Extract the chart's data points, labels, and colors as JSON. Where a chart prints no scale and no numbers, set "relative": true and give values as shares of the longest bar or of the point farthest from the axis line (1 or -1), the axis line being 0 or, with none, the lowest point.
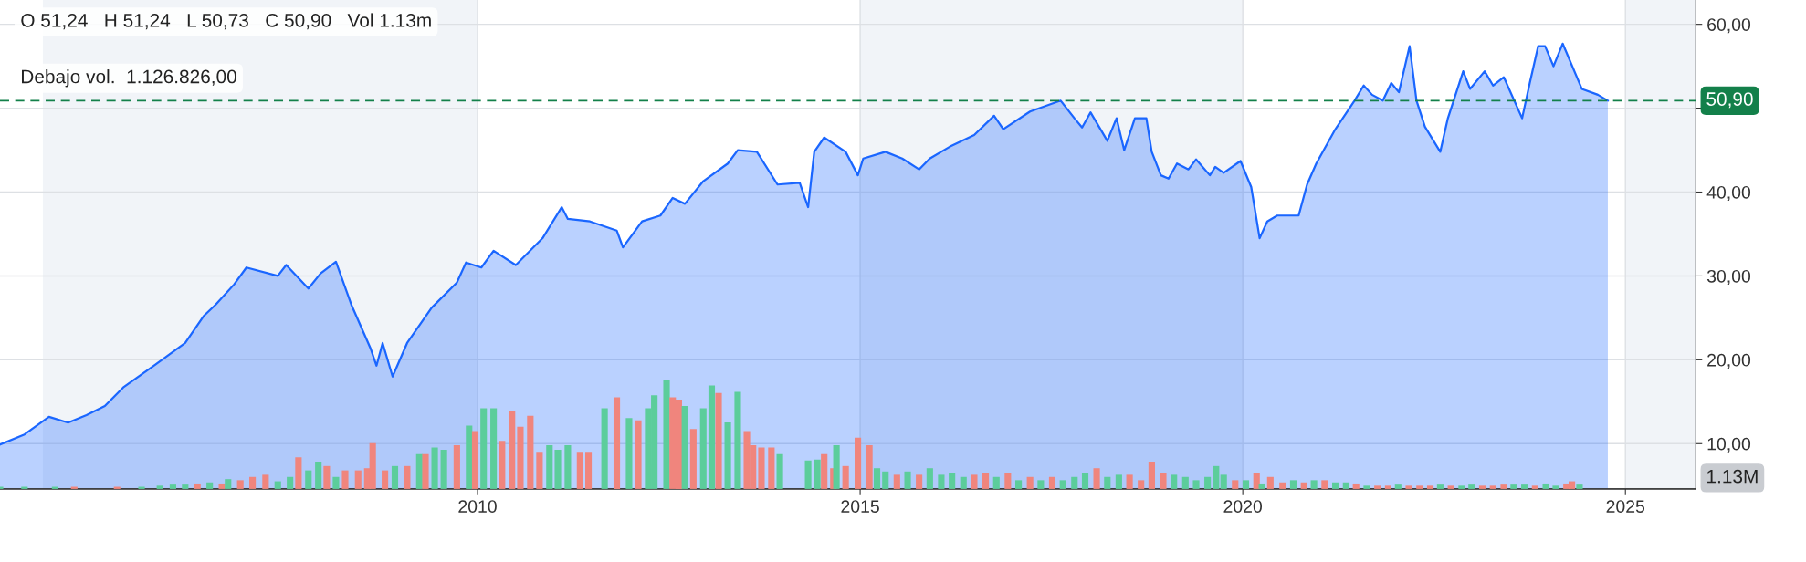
{
  "chart_data": [
    {
      "type": "area",
      "annotations": [
        "O 51,24   H 51,24   L 50,73   C 50,90   Vol 1.13m",
        "Debajo vol.  1.126.826,00"
      ],
      "xlim": [
        2003.76,
        2025.92
      ],
      "xticks": [
        2010,
        2015,
        2020,
        2025
      ],
      "ylim": [
        4.6,
        62.9
      ],
      "yticks": [
        {
          "value": 10,
          "label": "10,00"
        },
        {
          "value": 20,
          "label": "20,00"
        },
        {
          "value": 30,
          "label": "30,00"
        },
        {
          "value": 40,
          "label": "40,00"
        },
        {
          "value": 50,
          "label": null
        },
        {
          "value": 60,
          "label": "60,00"
        }
      ],
      "grid": true,
      "legend": false,
      "ref_lines": [
        {
          "axis": "y",
          "value": 50.9,
          "label": "50,90",
          "color": "#13804a",
          "line_style": "dashed"
        }
      ],
      "bands": [
        {
          "axis": "x",
          "from": 2004.32,
          "to": 2010,
          "color": "#f1f4f8"
        },
        {
          "axis": "x",
          "from": 2015,
          "to": 2020,
          "color": "#f1f4f8"
        },
        {
          "axis": "x",
          "from": 2025,
          "to": 2025.92,
          "color": "#f1f4f8"
        }
      ],
      "series": [
        {
          "color": "#1a66ff",
          "x": [
            2003.76,
            2004.08,
            2004.4,
            2004.65,
            2004.89,
            2005.13,
            2005.37,
            2005.77,
            2006.18,
            2006.42,
            2006.58,
            2006.82,
            2006.98,
            2007.39,
            2007.5,
            2007.79,
            2007.95,
            2008.15,
            2008.35,
            2008.6,
            2008.68,
            2008.76,
            2008.89,
            2009.08,
            2009.4,
            2009.73,
            2009.85,
            2010.05,
            2010.21,
            2010.5,
            2010.85,
            2011.1,
            2011.18,
            2011.47,
            2011.82,
            2011.9,
            2012.15,
            2012.39,
            2012.55,
            2012.71,
            2012.95,
            2013.27,
            2013.4,
            2013.65,
            2013.92,
            2014.21,
            2014.32,
            2014.4,
            2014.53,
            2014.81,
            2014.97,
            2015.04,
            2015.33,
            2015.55,
            2015.77,
            2015.91,
            2016.17,
            2016.49,
            2016.75,
            2016.87,
            2017.22,
            2017.62,
            2017.8,
            2017.9,
            2018.01,
            2018.23,
            2018.35,
            2018.45,
            2018.59,
            2018.74,
            2018.81,
            2018.93,
            2019.03,
            2019.14,
            2019.29,
            2019.39,
            2019.57,
            2019.64,
            2019.75,
            2019.97,
            2020.11,
            2020.22,
            2020.32,
            2020.45,
            2020.73,
            2020.84,
            2020.96,
            2021.21,
            2021.46,
            2021.58,
            2021.69,
            2021.83,
            2021.94,
            2022.04,
            2022.18,
            2022.27,
            2022.38,
            2022.58,
            2022.68,
            2022.88,
            2022.97,
            2023.16,
            2023.27,
            2023.41,
            2023.65,
            2023.75,
            2023.86,
            2023.95,
            2024.06,
            2024.18,
            2024.43,
            2024.64,
            2024.77
          ],
          "values": [
            9.9,
            11.1,
            13.2,
            12.5,
            13.4,
            14.5,
            16.7,
            19.3,
            22.0,
            25.2,
            26.6,
            29.0,
            31.0,
            30.0,
            31.3,
            28.5,
            30.3,
            31.7,
            26.6,
            21.4,
            19.3,
            22.0,
            18.0,
            22.0,
            26.2,
            29.2,
            31.6,
            31.0,
            33.0,
            31.3,
            34.5,
            38.2,
            36.8,
            36.5,
            35.4,
            33.4,
            36.5,
            37.2,
            39.3,
            38.6,
            41.3,
            43.4,
            45.0,
            44.8,
            40.9,
            41.1,
            38.2,
            44.8,
            46.5,
            44.8,
            42.0,
            44.0,
            44.8,
            44.0,
            42.7,
            44.0,
            45.4,
            46.8,
            49.1,
            47.5,
            49.6,
            50.9,
            48.8,
            47.7,
            49.5,
            46.1,
            48.8,
            45.0,
            48.8,
            48.8,
            44.8,
            42.0,
            41.6,
            43.4,
            42.7,
            43.9,
            42.0,
            43.0,
            42.3,
            43.7,
            40.6,
            34.5,
            36.5,
            37.2,
            37.2,
            40.9,
            43.4,
            47.5,
            50.9,
            52.7,
            51.6,
            50.9,
            53.0,
            51.9,
            57.4,
            50.9,
            47.8,
            44.8,
            48.8,
            54.4,
            52.3,
            54.4,
            52.7,
            53.7,
            48.8,
            53.0,
            57.4,
            57.4,
            55.0,
            57.7,
            52.3,
            51.6,
            50.9
          ]
        }
      ]
    },
    {
      "type": "bar",
      "relative": true,
      "tick_labels": false,
      "annotations": [
        "1.13M"
      ],
      "xlim": [
        2003.76,
        2025.92
      ],
      "xticks": [
        2010,
        2015,
        2020,
        2025
      ],
      "x": [
        2003.76,
        2004.08,
        2004.48,
        2004.73,
        2005.29,
        2005.61,
        2005.85,
        2006.02,
        2006.18,
        2006.34,
        2006.5,
        2006.66,
        2006.74,
        2006.9,
        2007.06,
        2007.23,
        2007.39,
        2007.55,
        2007.66,
        2007.79,
        2007.92,
        2008.03,
        2008.15,
        2008.27,
        2008.44,
        2008.56,
        2008.63,
        2008.79,
        2008.92,
        2009.08,
        2009.24,
        2009.32,
        2009.44,
        2009.56,
        2009.73,
        2009.89,
        2009.97,
        2010.08,
        2010.21,
        2010.32,
        2010.45,
        2010.56,
        2010.69,
        2010.81,
        2010.94,
        2011.05,
        2011.18,
        2011.34,
        2011.45,
        2011.66,
        2011.82,
        2011.98,
        2012.1,
        2012.23,
        2012.31,
        2012.47,
        2012.55,
        2012.63,
        2012.71,
        2012.82,
        2012.95,
        2013.06,
        2013.15,
        2013.27,
        2013.4,
        2013.52,
        2013.6,
        2013.71,
        2013.84,
        2013.95,
        2014.32,
        2014.44,
        2014.53,
        2014.65,
        2014.69,
        2014.81,
        2014.97,
        2015.12,
        2015.22,
        2015.33,
        2015.48,
        2015.62,
        2015.77,
        2015.91,
        2016.06,
        2016.2,
        2016.35,
        2016.49,
        2016.64,
        2016.78,
        2016.93,
        2017.07,
        2017.22,
        2017.36,
        2017.51,
        2017.65,
        2017.8,
        2017.94,
        2018.09,
        2018.23,
        2018.38,
        2018.52,
        2018.67,
        2018.81,
        2018.96,
        2019.1,
        2019.25,
        2019.39,
        2019.54,
        2019.65,
        2019.75,
        2019.9,
        2020.04,
        2020.18,
        2020.25,
        2020.36,
        2020.52,
        2020.66,
        2020.8,
        2020.93,
        2021.07,
        2021.21,
        2021.35,
        2021.48,
        2021.62,
        2021.76,
        2021.9,
        2022.03,
        2022.17,
        2022.31,
        2022.45,
        2022.58,
        2022.72,
        2022.86,
        2022.99,
        2023.13,
        2023.27,
        2023.41,
        2023.54,
        2023.68,
        2023.82,
        2023.96,
        2024.09,
        2024.23,
        2024.3,
        2024.4
      ],
      "values": [
        0.02,
        0.02,
        0.02,
        0.02,
        0.02,
        0.02,
        0.03,
        0.04,
        0.04,
        0.05,
        0.06,
        0.05,
        0.09,
        0.08,
        0.11,
        0.13,
        0.07,
        0.11,
        0.29,
        0.17,
        0.25,
        0.21,
        0.11,
        0.17,
        0.17,
        0.19,
        0.42,
        0.17,
        0.21,
        0.21,
        0.32,
        0.32,
        0.38,
        0.36,
        0.4,
        0.58,
        0.53,
        0.74,
        0.74,
        0.44,
        0.72,
        0.57,
        0.67,
        0.34,
        0.4,
        0.36,
        0.4,
        0.34,
        0.34,
        0.74,
        0.84,
        0.65,
        0.63,
        0.74,
        0.86,
        1,
        0.84,
        0.82,
        0.76,
        0.55,
        0.74,
        0.95,
        0.88,
        0.61,
        0.89,
        0.53,
        0.4,
        0.38,
        0.38,
        0.32,
        0.26,
        0.27,
        0.32,
        0.19,
        0.4,
        0.21,
        0.47,
        0.4,
        0.19,
        0.16,
        0.13,
        0.16,
        0.13,
        0.19,
        0.13,
        0.15,
        0.11,
        0.13,
        0.15,
        0.11,
        0.15,
        0.08,
        0.11,
        0.08,
        0.11,
        0.08,
        0.11,
        0.15,
        0.19,
        0.11,
        0.13,
        0.13,
        0.08,
        0.25,
        0.15,
        0.13,
        0.11,
        0.08,
        0.11,
        0.21,
        0.13,
        0.08,
        0.08,
        0.15,
        0.05,
        0.11,
        0.06,
        0.08,
        0.06,
        0.08,
        0.08,
        0.06,
        0.06,
        0.05,
        0.03,
        0.03,
        0.03,
        0.04,
        0.03,
        0.03,
        0.03,
        0.04,
        0.03,
        0.03,
        0.04,
        0.03,
        0.03,
        0.04,
        0.04,
        0.04,
        0.03,
        0.05,
        0.03,
        0.05,
        0.07,
        0.04
      ],
      "colors": [
        "#5ccd9b",
        "#5ccd9b",
        "#5ccd9b",
        "#f0857d",
        "#f0857d",
        "#5ccd9b",
        "#5ccd9b",
        "#5ccd9b",
        "#5ccd9b",
        "#f0857d",
        "#5ccd9b",
        "#f0857d",
        "#5ccd9b",
        "#f0857d",
        "#f0857d",
        "#f0857d",
        "#5ccd9b",
        "#5ccd9b",
        "#f0857d",
        "#5ccd9b",
        "#5ccd9b",
        "#f0857d",
        "#5ccd9b",
        "#f0857d",
        "#f0857d",
        "#f0857d",
        "#f0857d",
        "#f0857d",
        "#5ccd9b",
        "#f0857d",
        "#5ccd9b",
        "#f0857d",
        "#5ccd9b",
        "#5ccd9b",
        "#f0857d",
        "#5ccd9b",
        "#f0857d",
        "#5ccd9b",
        "#5ccd9b",
        "#f0857d",
        "#f0857d",
        "#f0857d",
        "#f0857d",
        "#f0857d",
        "#5ccd9b",
        "#5ccd9b",
        "#5ccd9b",
        "#f0857d",
        "#f0857d",
        "#5ccd9b",
        "#f0857d",
        "#5ccd9b",
        "#f0857d",
        "#5ccd9b",
        "#5ccd9b",
        "#5ccd9b",
        "#f0857d",
        "#f0857d",
        "#5ccd9b",
        "#f0857d",
        "#5ccd9b",
        "#5ccd9b",
        "#f0857d",
        "#5ccd9b",
        "#5ccd9b",
        "#f0857d",
        "#f0857d",
        "#f0857d",
        "#f0857d",
        "#5ccd9b",
        "#5ccd9b",
        "#5ccd9b",
        "#f0857d",
        "#f0857d",
        "#5ccd9b",
        "#f0857d",
        "#f0857d",
        "#f0857d",
        "#5ccd9b",
        "#5ccd9b",
        "#f0857d",
        "#5ccd9b",
        "#f0857d",
        "#5ccd9b",
        "#5ccd9b",
        "#5ccd9b",
        "#5ccd9b",
        "#f0857d",
        "#f0857d",
        "#5ccd9b",
        "#f0857d",
        "#5ccd9b",
        "#f0857d",
        "#5ccd9b",
        "#f0857d",
        "#5ccd9b",
        "#5ccd9b",
        "#5ccd9b",
        "#f0857d",
        "#5ccd9b",
        "#5ccd9b",
        "#f0857d",
        "#f0857d",
        "#f0857d",
        "#f0857d",
        "#5ccd9b",
        "#5ccd9b",
        "#5ccd9b",
        "#5ccd9b",
        "#5ccd9b",
        "#5ccd9b",
        "#f0857d",
        "#5ccd9b",
        "#f0857d",
        "#5ccd9b",
        "#f0857d",
        "#f0857d",
        "#5ccd9b",
        "#f0857d",
        "#5ccd9b",
        "#f0857d",
        "#5ccd9b",
        "#5ccd9b",
        "#f0857d",
        "#5ccd9b",
        "#f0857d",
        "#f0857d",
        "#5ccd9b",
        "#f0857d",
        "#f0857d",
        "#f0857d",
        "#5ccd9b",
        "#f0857d",
        "#5ccd9b",
        "#5ccd9b",
        "#f0857d",
        "#f0857d",
        "#f0857d",
        "#5ccd9b",
        "#5ccd9b",
        "#f0857d",
        "#5ccd9b",
        "#5ccd9b",
        "#f0857d",
        "#f0857d",
        "#5ccd9b"
      ]
    }
  ]
}
